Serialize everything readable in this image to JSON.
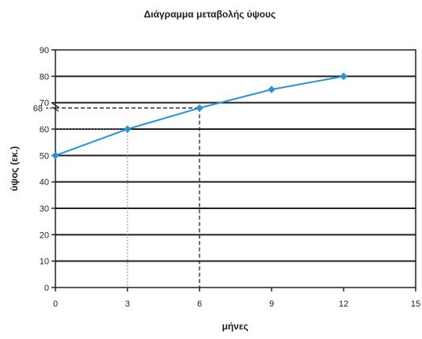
{
  "chart_data": {
    "type": "line",
    "title": "Διάγραμμα μεταβολής ύψους",
    "xlabel": "μήνες",
    "ylabel": "ύψος (εκ.)",
    "xlim": [
      0,
      15
    ],
    "ylim": [
      0,
      90
    ],
    "x_ticks": [
      "0",
      "3",
      "6",
      "9",
      "12",
      "15"
    ],
    "y_ticks": [
      "0",
      "10",
      "20",
      "30",
      "40",
      "50",
      "60",
      "70",
      "80",
      "90"
    ],
    "extra_y_tick": "68",
    "grid": true,
    "series": [
      {
        "color": "#2a93d5",
        "points": [
          {
            "x": 0,
            "y": 50
          },
          {
            "x": 3,
            "y": 60
          },
          {
            "x": 6,
            "y": 68
          },
          {
            "x": 9,
            "y": 75
          },
          {
            "x": 12,
            "y": 80
          }
        ]
      }
    ],
    "guides": [
      {
        "x": 3,
        "y": 60,
        "style": "dotted"
      },
      {
        "x": 6,
        "y": 68,
        "style": "dashed"
      }
    ]
  }
}
